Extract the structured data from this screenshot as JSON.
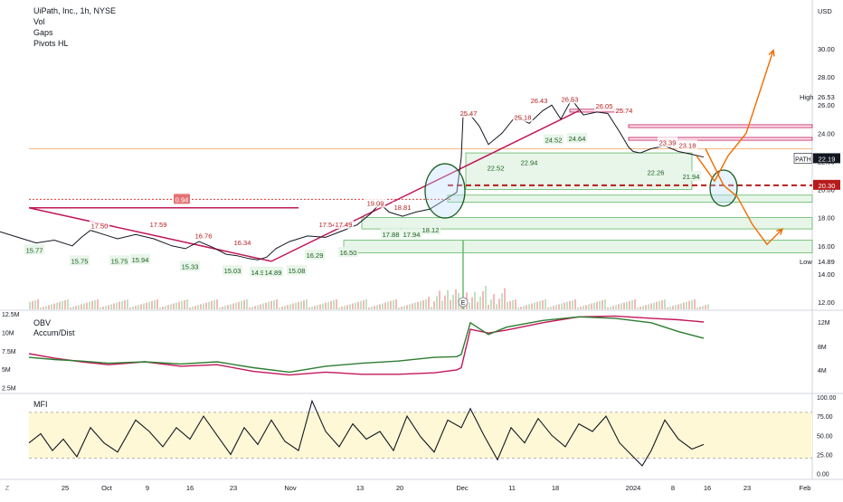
{
  "header": {
    "title": "UiPath, Inc., 1h, NYSE",
    "indicators": [
      "Vol",
      "Gaps",
      "Pivots HL"
    ],
    "currency": "USD"
  },
  "chart_data": [
    {
      "type": "line",
      "pane": "price",
      "symbol": "PATH",
      "ylim": [
        11.5,
        32
      ],
      "y_ticks": [
        12.0,
        14.0,
        16.0,
        18.0,
        20.0,
        22.0,
        24.0,
        26.0,
        28.0,
        30.0
      ],
      "x_tick_labels": [
        "25",
        "Oct",
        "9",
        "16",
        "23",
        "Nov",
        "13",
        "20",
        "Dec",
        "11",
        "18",
        "2024",
        "8",
        "16",
        "23",
        "Feb"
      ],
      "series": [
        {
          "x": [
            0,
            20,
            40,
            60,
            80,
            90,
            100,
            115,
            130,
            150,
            170,
            190,
            205,
            220,
            235,
            250,
            262,
            275,
            285,
            295,
            305,
            320,
            340,
            360,
            380,
            395,
            410,
            420,
            430,
            445,
            460,
            475,
            490,
            505,
            510,
            512,
            520,
            530,
            540,
            555,
            570,
            585,
            600,
            610,
            620,
            632,
            645,
            660,
            672,
            685,
            695,
            700,
            708,
            720,
            735,
            750,
            765,
            778
          ],
          "y": [
            17.0,
            16.6,
            16.2,
            16.4,
            16.0,
            16.6,
            17.1,
            16.8,
            16.5,
            16.8,
            16.5,
            16.0,
            15.8,
            16.3,
            15.9,
            15.4,
            15.3,
            15.1,
            15.0,
            15.2,
            15.8,
            16.3,
            16.7,
            16.6,
            17.1,
            17.5,
            18.3,
            19.0,
            18.4,
            18.1,
            18.4,
            18.6,
            19.2,
            19.8,
            22.3,
            25.3,
            25.3,
            24.5,
            23.2,
            24.0,
            25.2,
            24.7,
            25.6,
            26.0,
            25.0,
            26.4,
            25.3,
            25.5,
            25.4,
            24.1,
            23.0,
            22.7,
            22.6,
            22.9,
            23.1,
            22.7,
            22.5,
            22.3
          ]
        }
      ],
      "pivot_high_labels": [
        "17.50",
        "17.59",
        "16.76",
        "16.34",
        "17.54",
        "17.49",
        "19.09",
        "18.81",
        "25.47",
        "25.18",
        "26.43",
        "26.53",
        "26.05",
        "25.74",
        "23.39",
        "23.18"
      ],
      "pivot_low_labels": [
        "15.77",
        "15.75",
        "15.75",
        "15.94",
        "15.33",
        "15.03",
        "14.95",
        "14.89",
        "15.08",
        "16.29",
        "16.50",
        "17.88",
        "17.94",
        "18.12",
        "22.52",
        "22.94",
        "24.52",
        "24.64",
        "22.26",
        "21.94"
      ],
      "gap_label": "0.94",
      "last_price": {
        "label": "PATH",
        "value": "22.19"
      },
      "level_value": "20.30",
      "high": {
        "label": "High",
        "value": "26.53"
      },
      "low": {
        "label": "Low",
        "value": "14.89"
      },
      "earnings_marker": "E",
      "projection_up": {
        "x": [
          770,
          790,
          805,
          825,
          855
        ],
        "y": [
          22.4,
          20.6,
          22.4,
          24.0,
          29.9
        ]
      },
      "projection_down": {
        "x": [
          780,
          800,
          815,
          832,
          848,
          865
        ],
        "y": [
          22.9,
          20.3,
          19.5,
          17.5,
          16.1,
          17.2
        ]
      }
    },
    {
      "type": "line",
      "pane": "obv",
      "ylim": [
        2.5,
        12.5
      ],
      "y_axis_labels": [
        "12.5M",
        "10M",
        "7.5M",
        "5M",
        "2.5M"
      ],
      "right_axis_labels": [
        "12M",
        "8M",
        "4M"
      ],
      "series": [
        {
          "name": "OBV",
          "color": "#c2185b",
          "x": [
            32,
            60,
            90,
            120,
            160,
            200,
            240,
            280,
            320,
            360,
            400,
            440,
            480,
            505,
            510,
            520,
            540,
            560,
            600,
            640,
            680,
            720,
            750,
            778
          ],
          "y": [
            7.1,
            6.5,
            6.0,
            5.6,
            6.0,
            5.4,
            5.6,
            4.7,
            4.2,
            4.6,
            4.3,
            4.3,
            4.5,
            4.9,
            5.2,
            10.4,
            9.9,
            10.3,
            11.3,
            12.1,
            12.2,
            11.9,
            11.7,
            11.4
          ]
        },
        {
          "name": "Accum/Dist",
          "color": "#2e7d32",
          "x": [
            32,
            60,
            90,
            120,
            160,
            200,
            240,
            280,
            320,
            360,
            400,
            440,
            480,
            505,
            510,
            520,
            540,
            560,
            600,
            640,
            680,
            720,
            750,
            778
          ],
          "y": [
            6.6,
            6.3,
            6.1,
            5.8,
            6.0,
            5.7,
            6.0,
            5.2,
            4.6,
            5.4,
            5.8,
            6.1,
            6.6,
            6.7,
            7.0,
            11.3,
            9.7,
            10.7,
            11.6,
            12.1,
            11.9,
            11.3,
            10.1,
            9.2
          ]
        }
      ]
    },
    {
      "type": "line",
      "pane": "mfi",
      "name": "MFI",
      "ylim": [
        0,
        100
      ],
      "y_ticks": [
        0,
        25,
        50,
        75,
        100
      ],
      "y_tick_labels": [
        "0.00",
        "25.00",
        "50.00",
        "75.00",
        "100.00"
      ],
      "band": [
        20,
        80
      ],
      "series": [
        {
          "x": [
            32,
            45,
            58,
            70,
            85,
            100,
            115,
            130,
            150,
            165,
            180,
            195,
            210,
            225,
            240,
            255,
            270,
            285,
            300,
            315,
            330,
            345,
            360,
            375,
            390,
            405,
            420,
            435,
            450,
            465,
            480,
            495,
            510,
            520,
            535,
            550,
            565,
            580,
            595,
            610,
            625,
            640,
            655,
            670,
            685,
            700,
            710,
            720,
            735,
            750,
            765,
            778
          ],
          "y": [
            40,
            52,
            30,
            45,
            22,
            60,
            40,
            28,
            70,
            55,
            35,
            60,
            45,
            75,
            50,
            25,
            60,
            38,
            70,
            42,
            30,
            95,
            55,
            35,
            65,
            45,
            55,
            30,
            75,
            48,
            28,
            70,
            60,
            85,
            50,
            18,
            60,
            40,
            72,
            50,
            35,
            65,
            55,
            75,
            40,
            22,
            10,
            30,
            70,
            45,
            32,
            38
          ]
        }
      ]
    }
  ]
}
